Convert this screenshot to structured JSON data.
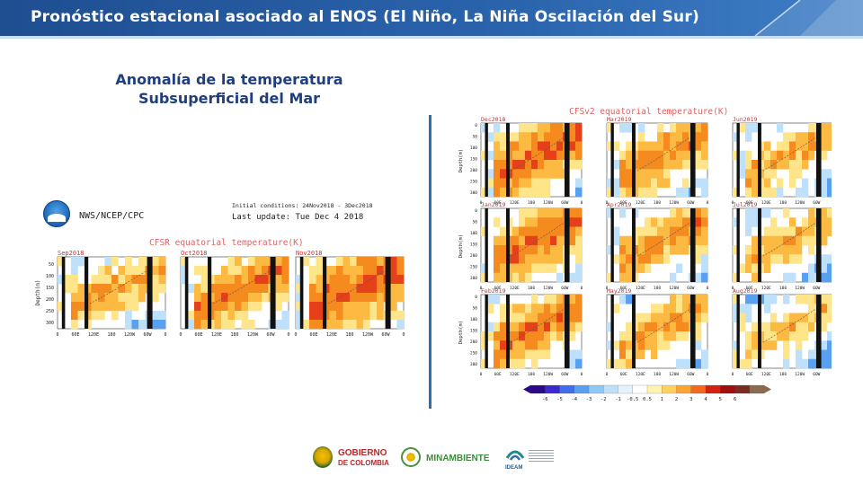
{
  "header": {
    "title": "Pronóstico estacional asociado al ENOS (El Niño, La Niña Oscilación del Sur)"
  },
  "subtitle": {
    "line1": "Anomalía de la temperatura",
    "line2": "Subsuperficial del Mar"
  },
  "left_panel": {
    "org": "NWS/NCEP/CPC",
    "init_conditions": "Initial conditions: 24Nov2018 - 3Dec2018",
    "last_update": "Last update: Tue Dec  4  2018",
    "chart_title": "CFSR  equatorial  temperature(K)",
    "maps": [
      {
        "label": "Sep2018"
      },
      {
        "label": "Oct2018"
      },
      {
        "label": "Nov2018"
      }
    ],
    "y_label": "Depth(m)",
    "y_ticks": [
      "50",
      "100",
      "150",
      "200",
      "250",
      "300"
    ],
    "x_ticks": [
      "0",
      "60E",
      "120E",
      "180",
      "120W",
      "60W",
      "0"
    ]
  },
  "right_panel": {
    "chart_title": "CFSv2  equatorial  temperature(K)",
    "maps": [
      {
        "label": "Dec2018"
      },
      {
        "label": "Jan2019"
      },
      {
        "label": "Feb2019"
      },
      {
        "label": "Mar2019"
      },
      {
        "label": "Apr2019"
      },
      {
        "label": "May2019"
      },
      {
        "label": "Jun2019"
      },
      {
        "label": "Jul2019"
      },
      {
        "label": "Aug2019"
      }
    ],
    "y_label": "Depth(m)",
    "y_ticks": [
      "0",
      "50",
      "100",
      "150",
      "200",
      "250",
      "300"
    ],
    "x_ticks": [
      "0",
      "60E",
      "120E",
      "180",
      "120W",
      "60W",
      "0"
    ],
    "colorbar_ticks": [
      "-6",
      "-5",
      "-4",
      "-3",
      "-2",
      "-1",
      "-0.5",
      "0.5",
      "1",
      "2",
      "3",
      "4",
      "5",
      "6"
    ],
    "colorbar_colors": [
      "#2a0a8a",
      "#3a2ad0",
      "#3f6df0",
      "#5aa0f0",
      "#8ec8f5",
      "#bfe0fa",
      "#e4f2fc",
      "#ffffff",
      "#fff2b0",
      "#ffd35a",
      "#fca534",
      "#f36a1e",
      "#d62010",
      "#9e1010",
      "#7a2c20",
      "#8a6a50"
    ]
  },
  "footer": {
    "gobierno_line1": "GOBIERNO",
    "gobierno_line2": "DE COLOMBIA",
    "minambiente": "MINAMBIENTE",
    "ideam": "IDEAM"
  }
}
